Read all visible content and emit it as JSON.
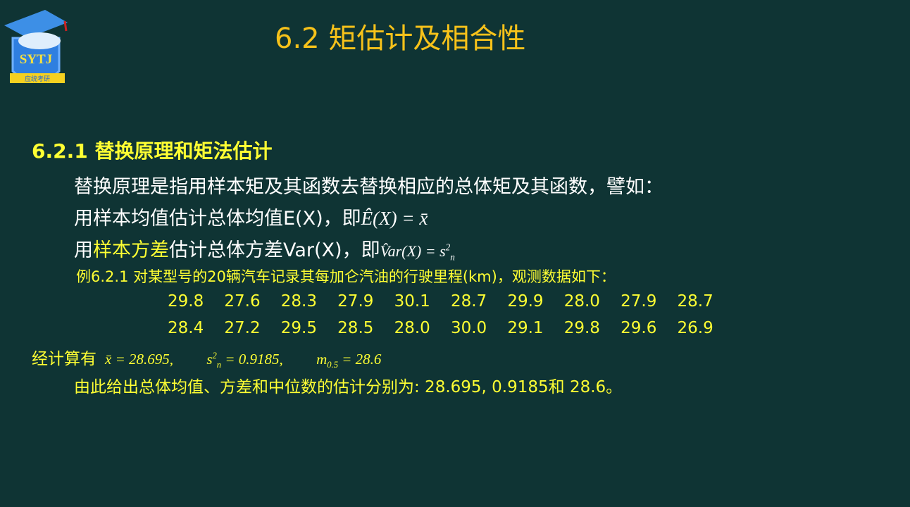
{
  "logo": {
    "text": "SYTJ",
    "ribbon": "应统考研"
  },
  "title": "6.2 矩估计及相合性",
  "heading": "6.2.1 替换原理和矩法估计",
  "lines": {
    "l1": "替换原理是指用样本矩及其函数去替换相应的总体矩及其函数，譬如：",
    "l2_text": "用样本均值估计总体均值E(X)，即",
    "l2_math": "Ê(X) = x̄",
    "l3_pre": "用",
    "l3_hl": "样本方差",
    "l3_post": "估计总体方差Var(X)，即",
    "l3_math": "V̂ar(X) = s",
    "l3_sup": "2",
    "l3_sub": "n"
  },
  "example": {
    "text": "例6.2.1 对某型号的20辆汽车记录其每加仑汽油的行驶里程(km)，观测数据如下：",
    "rows": [
      [
        "29.8",
        "27.6",
        "28.3",
        "27.9",
        "30.1",
        "28.7",
        "29.9",
        "28.0",
        "27.9",
        "28.7"
      ],
      [
        "28.4",
        "27.2",
        "29.5",
        "28.5",
        "28.0",
        "30.0",
        "29.1",
        "29.8",
        "29.6",
        "26.9"
      ]
    ]
  },
  "calc": {
    "label": "经计算有",
    "mean": "x̄ = 28.695,",
    "var": "= 0.9185,",
    "var_sym": "s",
    "median_sym": "m",
    "median_sub": "0.5",
    "median": "= 28.6"
  },
  "conclusion": "由此给出总体均值、方差和中位数的估计分别为: 28.695, 0.9185和 28.6。",
  "colors": {
    "background": "#0f3434",
    "title": "#f7c21a",
    "highlight": "#ffff33"
  }
}
